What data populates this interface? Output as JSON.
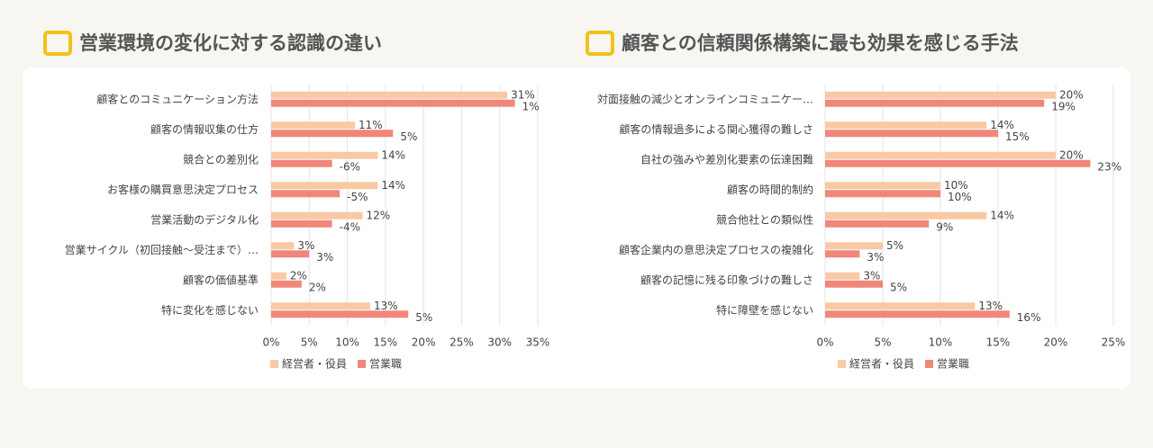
{
  "chart_data": [
    {
      "type": "hbar",
      "title": "営業環境の変化に対する認識の違い",
      "categories": [
        "顧客とのコミュニケーション方法",
        "顧客の情報収集の仕方",
        "競合との差別化",
        "お客様の購買意思決定プロセス",
        "営業活動のデジタル化",
        "営業サイクル（初回接触～受注まで）…",
        "顧客の価値基準",
        "特に変化を感じない"
      ],
      "series": [
        {
          "name": "経営者・役員",
          "color": "#f9c9a4",
          "values": [
            31,
            11,
            14,
            14,
            12,
            3,
            2,
            13
          ],
          "value_labels": [
            "31%",
            "11%",
            "14%",
            "14%",
            "12%",
            "3%",
            "2%",
            "13%"
          ]
        },
        {
          "name": "営業職",
          "color": "#f0877a",
          "values": [
            32,
            16,
            8,
            9,
            8,
            5,
            4,
            18
          ],
          "labels": [
            "1%",
            "5%",
            "-6%",
            "-5%",
            "-4%",
            "3%",
            "2%",
            "5%"
          ]
        }
      ],
      "xlim": [
        0,
        35
      ],
      "xticks": [
        {
          "value": 0,
          "label": "0%"
        },
        {
          "value": 5,
          "label": "5%"
        },
        {
          "value": 10,
          "label": "10%"
        },
        {
          "value": 15,
          "label": "15%"
        },
        {
          "value": 20,
          "label": "20%"
        },
        {
          "value": 25,
          "label": "25%"
        },
        {
          "value": 30,
          "label": "30%"
        },
        {
          "value": 35,
          "label": "35%"
        }
      ],
      "grid": true,
      "legend": "bottom"
    },
    {
      "type": "hbar",
      "title": "顧客との信頼関係構築に最も効果を感じる手法",
      "categories": [
        "対面接触の減少とオンラインコミュニケー…",
        "顧客の情報過多による関心獲得の難しさ",
        "自社の強みや差別化要素の伝達困難",
        "顧客の時間的制約",
        "競合他社との類似性",
        "顧客企業内の意思決定プロセスの複雑化",
        "顧客の記憶に残る印象づけの難しさ",
        "特に障壁を感じない"
      ],
      "series": [
        {
          "name": "経営者・役員",
          "color": "#f9c9a4",
          "values": [
            20,
            14,
            20,
            10,
            14,
            5,
            3,
            13
          ],
          "value_labels": [
            "20%",
            "14%",
            "20%",
            "10%",
            "14%",
            "5%",
            "3%",
            "13%"
          ]
        },
        {
          "name": "営業職",
          "color": "#f0877a",
          "values": [
            19,
            15,
            23,
            10,
            9,
            3,
            5,
            16
          ],
          "value_labels": [
            "19%",
            "15%",
            "23%",
            "10%",
            "9%",
            "3%",
            "5%",
            "16%"
          ]
        }
      ],
      "xlim": [
        0,
        25
      ],
      "xticks": [
        {
          "value": 0,
          "label": "0%"
        },
        {
          "value": 5,
          "label": "5%"
        },
        {
          "value": 10,
          "label": "10%"
        },
        {
          "value": 15,
          "label": "15%"
        },
        {
          "value": 20,
          "label": "20%"
        },
        {
          "value": 25,
          "label": "25%"
        }
      ],
      "grid": true,
      "legend": "bottom"
    }
  ]
}
